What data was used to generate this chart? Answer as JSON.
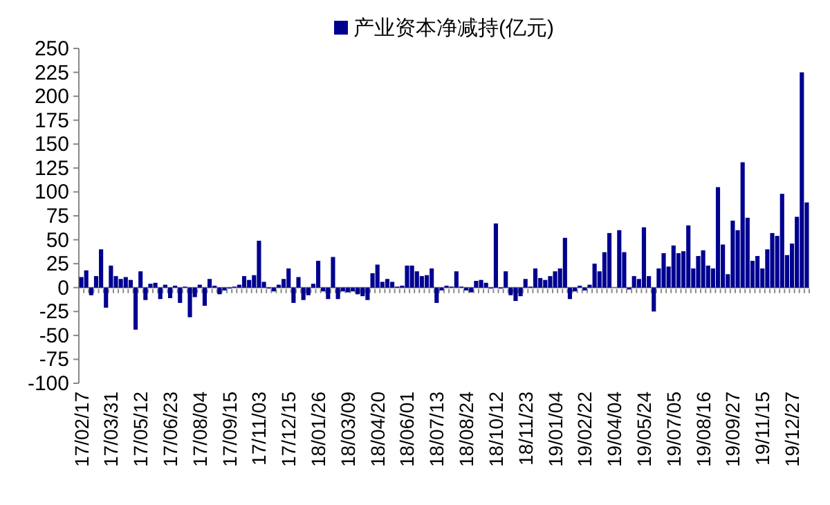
{
  "chart_data": {
    "type": "bar",
    "categories": [
      "17/02/17",
      null,
      null,
      null,
      null,
      null,
      "17/03/31",
      null,
      null,
      null,
      null,
      null,
      "17/05/12",
      null,
      null,
      null,
      null,
      null,
      "17/06/23",
      null,
      null,
      null,
      null,
      null,
      "17/08/04",
      null,
      null,
      null,
      null,
      null,
      "17/09/15",
      null,
      null,
      null,
      null,
      null,
      "17/11/03",
      null,
      null,
      null,
      null,
      null,
      "17/12/15",
      null,
      null,
      null,
      null,
      null,
      "18/01/26",
      null,
      null,
      null,
      null,
      null,
      "18/03/09",
      null,
      null,
      null,
      null,
      null,
      "18/04/20",
      null,
      null,
      null,
      null,
      null,
      "18/06/01",
      null,
      null,
      null,
      null,
      null,
      "18/07/13",
      null,
      null,
      null,
      null,
      null,
      "18/08/24",
      null,
      null,
      null,
      null,
      null,
      "18/10/12",
      null,
      null,
      null,
      null,
      null,
      "18/11/23",
      null,
      null,
      null,
      null,
      null,
      "19/01/04",
      null,
      null,
      null,
      null,
      null,
      "19/02/22",
      null,
      null,
      null,
      null,
      null,
      "19/04/04",
      null,
      null,
      null,
      null,
      null,
      "19/05/24",
      null,
      null,
      null,
      null,
      null,
      "19/07/05",
      null,
      null,
      null,
      null,
      null,
      "19/08/16",
      null,
      null,
      null,
      null,
      null,
      "19/09/27",
      null,
      null,
      null,
      null,
      null,
      "19/11/15",
      null,
      null,
      null,
      null,
      null,
      "19/12/27",
      null,
      null,
      null
    ],
    "series": [
      {
        "name": "产业资本净减持(亿元)",
        "color": "#000090",
        "values": [
          11,
          18,
          -8,
          12,
          40,
          -21,
          23,
          12,
          9,
          11,
          8,
          -44,
          17,
          -13,
          4,
          5,
          -12,
          3,
          -11,
          2,
          -16,
          1,
          -31,
          -10,
          3,
          -19,
          9,
          2,
          -7,
          -3,
          -1,
          1,
          3,
          12,
          8,
          13,
          49,
          6,
          -1,
          -4,
          3,
          9,
          20,
          -16,
          11,
          -13,
          -8,
          4,
          28,
          -4,
          -12,
          32,
          -12,
          -4,
          -5,
          -4,
          -7,
          -9,
          -13,
          15,
          24,
          6,
          9,
          6,
          1,
          2,
          23,
          23,
          17,
          12,
          13,
          20,
          -16,
          -3,
          2,
          1,
          17,
          1,
          -3,
          -5,
          7,
          8,
          5,
          -1,
          67,
          -1,
          17,
          -8,
          -14,
          -9,
          9,
          1,
          20,
          10,
          8,
          12,
          17,
          20,
          52,
          -12,
          -4,
          2,
          -3,
          3,
          25,
          17,
          37,
          57,
          0,
          60,
          37,
          -2,
          12,
          9,
          63,
          12,
          -25,
          20,
          36,
          22,
          44,
          36,
          38,
          65,
          20,
          33,
          39,
          23,
          20,
          105,
          45,
          14,
          70,
          60,
          131,
          73,
          28,
          33,
          20,
          40,
          57,
          54,
          98,
          34,
          46,
          74,
          225,
          89
        ]
      }
    ],
    "ylim": [
      -100,
      250
    ],
    "yticks": [
      -100,
      -75,
      -50,
      -25,
      0,
      25,
      50,
      75,
      100,
      125,
      150,
      175,
      200,
      225,
      250
    ],
    "legend": "top"
  }
}
